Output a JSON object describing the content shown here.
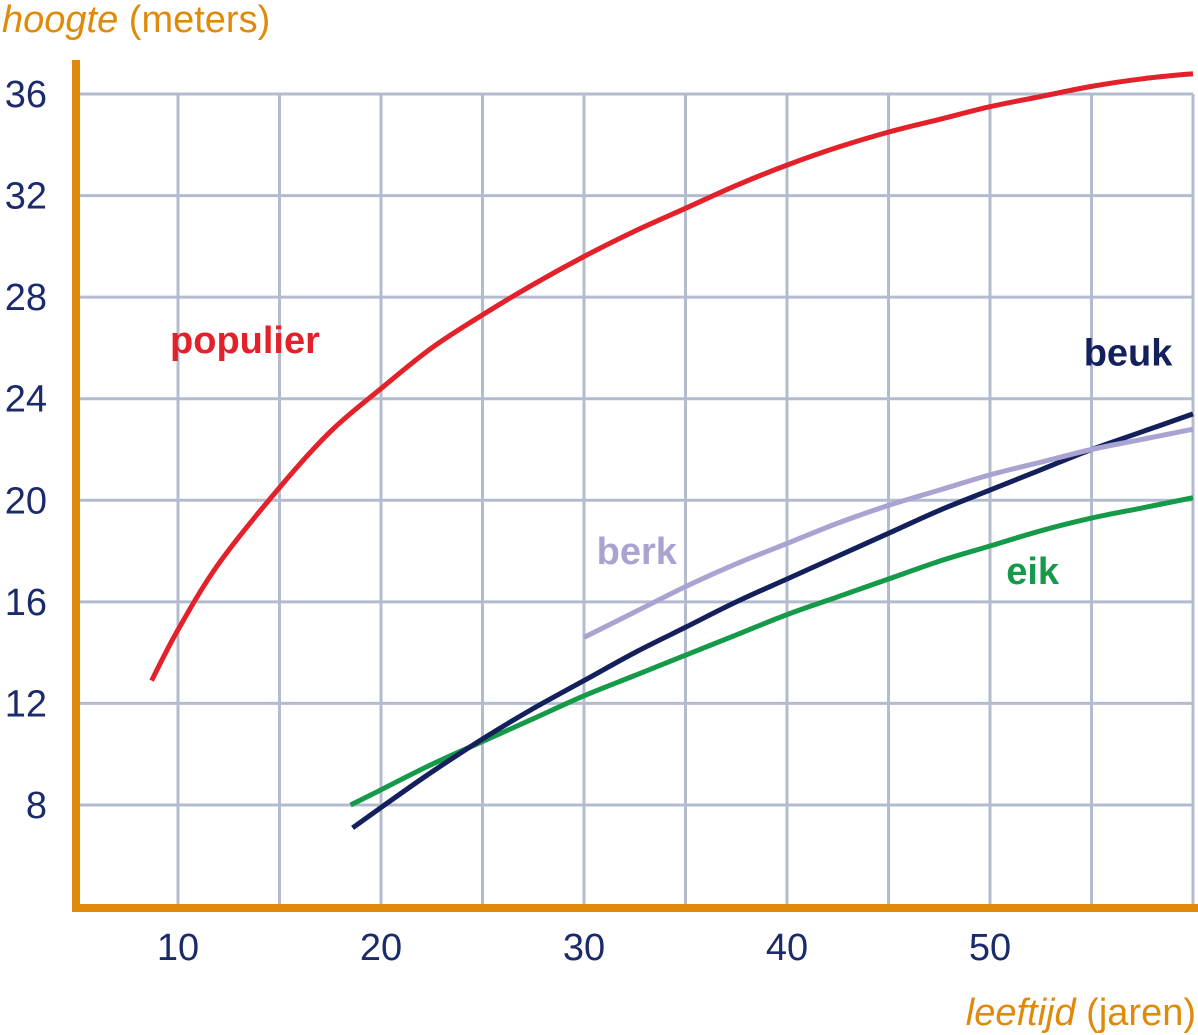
{
  "chart_data": {
    "type": "line",
    "ylabel": {
      "italic": "hoogte",
      "normal": " (meters)"
    },
    "xlabel": {
      "italic": "leeftijd",
      "normal": " (jaren)"
    },
    "xlim": [
      5,
      60
    ],
    "ylim": [
      0,
      37.5
    ],
    "x_ticks": [
      10,
      20,
      30,
      40,
      50
    ],
    "y_ticks": [
      8,
      12,
      16,
      20,
      24,
      28,
      32,
      36
    ],
    "grid": true,
    "axis_color": "#e08a0b",
    "grid_color": "#b3bccf",
    "tick_color": "#1b2a6b",
    "series": [
      {
        "name": "populier",
        "color": "#e3212b",
        "label_at": [
          13.3,
          25.8
        ],
        "points": [
          [
            8.7,
            12.9
          ],
          [
            10,
            14.9
          ],
          [
            12,
            17.5
          ],
          [
            15,
            20.5
          ],
          [
            17.5,
            22.7
          ],
          [
            20,
            24.4
          ],
          [
            22.5,
            26.0
          ],
          [
            25,
            27.3
          ],
          [
            27.5,
            28.5
          ],
          [
            30,
            29.6
          ],
          [
            32.5,
            30.6
          ],
          [
            35,
            31.5
          ],
          [
            37.5,
            32.4
          ],
          [
            40,
            33.2
          ],
          [
            42.5,
            33.9
          ],
          [
            45,
            34.5
          ],
          [
            47.5,
            35.0
          ],
          [
            50,
            35.5
          ],
          [
            52.5,
            35.9
          ],
          [
            55,
            36.3
          ],
          [
            57.5,
            36.6
          ],
          [
            60,
            36.8
          ]
        ]
      },
      {
        "name": "beuk",
        "color": "#13205c",
        "label_at": [
          56.8,
          25.3
        ],
        "points": [
          [
            18.6,
            7.1
          ],
          [
            20,
            7.9
          ],
          [
            22.5,
            9.3
          ],
          [
            25,
            10.6
          ],
          [
            27.5,
            11.8
          ],
          [
            30,
            12.9
          ],
          [
            32.5,
            14.0
          ],
          [
            35,
            15.0
          ],
          [
            37.5,
            16.0
          ],
          [
            40,
            16.9
          ],
          [
            42.5,
            17.8
          ],
          [
            45,
            18.7
          ],
          [
            47.5,
            19.6
          ],
          [
            50,
            20.4
          ],
          [
            52.5,
            21.2
          ],
          [
            55,
            22.0
          ],
          [
            57.5,
            22.7
          ],
          [
            60,
            23.4
          ]
        ]
      },
      {
        "name": "berk",
        "color": "#a9a3d1",
        "label_at": [
          32.6,
          17.5
        ],
        "points": [
          [
            30,
            14.6
          ],
          [
            32.5,
            15.6
          ],
          [
            35,
            16.6
          ],
          [
            37.5,
            17.5
          ],
          [
            40,
            18.3
          ],
          [
            42.5,
            19.1
          ],
          [
            45,
            19.8
          ],
          [
            47.5,
            20.4
          ],
          [
            50,
            21.0
          ],
          [
            52.5,
            21.5
          ],
          [
            55,
            22.0
          ],
          [
            57.5,
            22.4
          ],
          [
            60,
            22.8
          ]
        ]
      },
      {
        "name": "eik",
        "color": "#149a48",
        "label_at": [
          52.1,
          16.7
        ],
        "points": [
          [
            18.5,
            8.0
          ],
          [
            20,
            8.6
          ],
          [
            22.5,
            9.6
          ],
          [
            25,
            10.5
          ],
          [
            27.5,
            11.4
          ],
          [
            30,
            12.3
          ],
          [
            32.5,
            13.1
          ],
          [
            35,
            13.9
          ],
          [
            37.5,
            14.7
          ],
          [
            40,
            15.5
          ],
          [
            42.5,
            16.2
          ],
          [
            45,
            16.9
          ],
          [
            47.5,
            17.6
          ],
          [
            50,
            18.2
          ],
          [
            52.5,
            18.8
          ],
          [
            55,
            19.3
          ],
          [
            57.5,
            19.7
          ],
          [
            60,
            20.1
          ]
        ]
      }
    ]
  }
}
